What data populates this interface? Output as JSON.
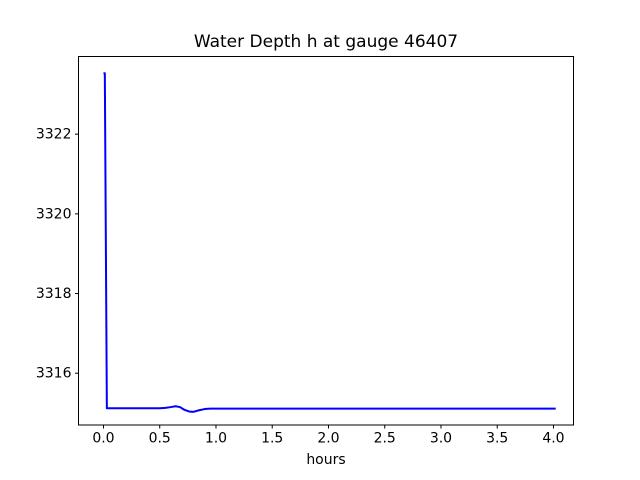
{
  "figure": {
    "background": "#ffffff"
  },
  "chart_data": {
    "type": "line",
    "title": "Water Depth h at gauge 46407",
    "xlabel": "hours",
    "ylabel": "",
    "grid": false,
    "legend": null,
    "xlim": [
      -0.222,
      4.178
    ],
    "ylim": [
      3314.7,
      3323.95
    ],
    "xticks": {
      "values": [
        0.0,
        0.5,
        1.0,
        1.5,
        2.0,
        2.5,
        3.0,
        3.5,
        4.0
      ],
      "labels": [
        "0.0",
        "0.5",
        "1.0",
        "1.5",
        "2.0",
        "2.5",
        "3.0",
        "3.5",
        "4.0"
      ]
    },
    "yticks": {
      "values": [
        3316,
        3318,
        3320,
        3322
      ],
      "labels": [
        "3316",
        "3318",
        "3320",
        "3322"
      ]
    },
    "line_color": "#0000ff",
    "line_width": 2,
    "axis_color": "#000000",
    "series": [
      {
        "name": "h",
        "x": [
          0.0,
          0.012,
          0.03,
          0.1,
          0.2,
          0.3,
          0.4,
          0.5,
          0.55,
          0.6,
          0.64,
          0.68,
          0.72,
          0.76,
          0.8,
          0.85,
          0.9,
          0.95,
          1.0,
          1.2,
          1.5,
          2.0,
          2.5,
          3.0,
          3.5,
          4.0,
          4.02
        ],
        "y": [
          3323.53,
          3323.53,
          3315.12,
          3315.12,
          3315.12,
          3315.12,
          3315.12,
          3315.12,
          3315.13,
          3315.15,
          3315.17,
          3315.15,
          3315.08,
          3315.04,
          3315.03,
          3315.07,
          3315.1,
          3315.11,
          3315.11,
          3315.11,
          3315.11,
          3315.11,
          3315.11,
          3315.11,
          3315.11,
          3315.11,
          3315.11
        ]
      }
    ]
  }
}
